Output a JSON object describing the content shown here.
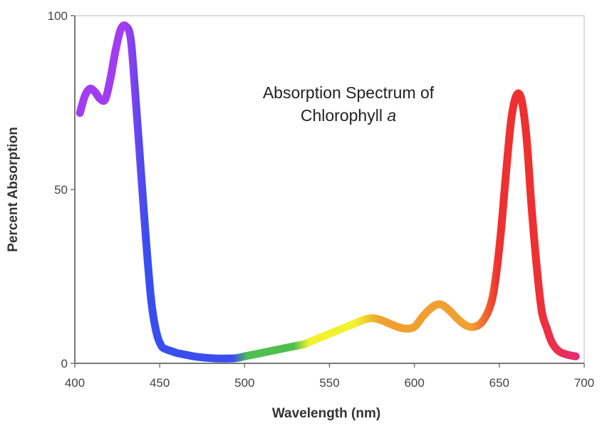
{
  "chart_data": {
    "type": "line",
    "title_line1": "Absorption Spectrum of",
    "title_line2_text": "Chlorophyll",
    "title_line2_italic": "a",
    "xlabel": "Wavelength (nm)",
    "ylabel": "Percent Absorption",
    "xlim": [
      400,
      700
    ],
    "ylim": [
      0,
      100
    ],
    "xticks": [
      400,
      450,
      500,
      550,
      600,
      650,
      700
    ],
    "xtick_labels": [
      "400",
      "450",
      "500",
      "550",
      "600",
      "650",
      "700"
    ],
    "yticks": [
      0,
      50,
      100
    ],
    "ytick_labels": [
      "0",
      "50",
      "100"
    ],
    "grid": false,
    "legend": "none",
    "series": [
      {
        "x": [
          403,
          406,
          409,
          412,
          415,
          418,
          421,
          424,
          427,
          430,
          433,
          436,
          439,
          442,
          445,
          448,
          451,
          454,
          457,
          460,
          465,
          470,
          475,
          480,
          485,
          490,
          495,
          500,
          505,
          510,
          515,
          520,
          525,
          530,
          535,
          540,
          545,
          550,
          555,
          560,
          565,
          570,
          575,
          580,
          585,
          590,
          595,
          600,
          605,
          610,
          615,
          620,
          625,
          630,
          635,
          640,
          645,
          648,
          651,
          654,
          657,
          660,
          663,
          666,
          669,
          672,
          675,
          678,
          681,
          685,
          690,
          695
        ],
        "y": [
          72,
          77,
          79,
          78,
          76,
          76,
          82,
          90,
          96,
          97,
          93,
          75,
          55,
          35,
          18,
          9,
          5,
          4,
          3.5,
          3,
          2.5,
          2,
          1.7,
          1.5,
          1.4,
          1.4,
          1.5,
          2,
          2.5,
          3,
          3.5,
          4,
          4.5,
          5,
          5.5,
          6.5,
          7.5,
          8.5,
          9.5,
          10.5,
          11.5,
          12.5,
          13,
          12.5,
          11.5,
          10.5,
          10,
          10.5,
          13.5,
          16,
          17,
          15.5,
          13,
          11,
          10.5,
          12,
          17,
          25,
          38,
          55,
          70,
          77,
          76,
          65,
          45,
          28,
          15,
          10,
          6,
          3.5,
          2.5,
          2
        ]
      }
    ],
    "colors": {
      "violet": "#a23cf0",
      "blue": "#3a4ef0",
      "green": "#4fc04f",
      "yellow": "#f2f230",
      "orange": "#f0a030",
      "red": "#ef3030",
      "magenta": "#e52d7a",
      "axis": "#777777",
      "frame": "#b8b8b8"
    }
  }
}
